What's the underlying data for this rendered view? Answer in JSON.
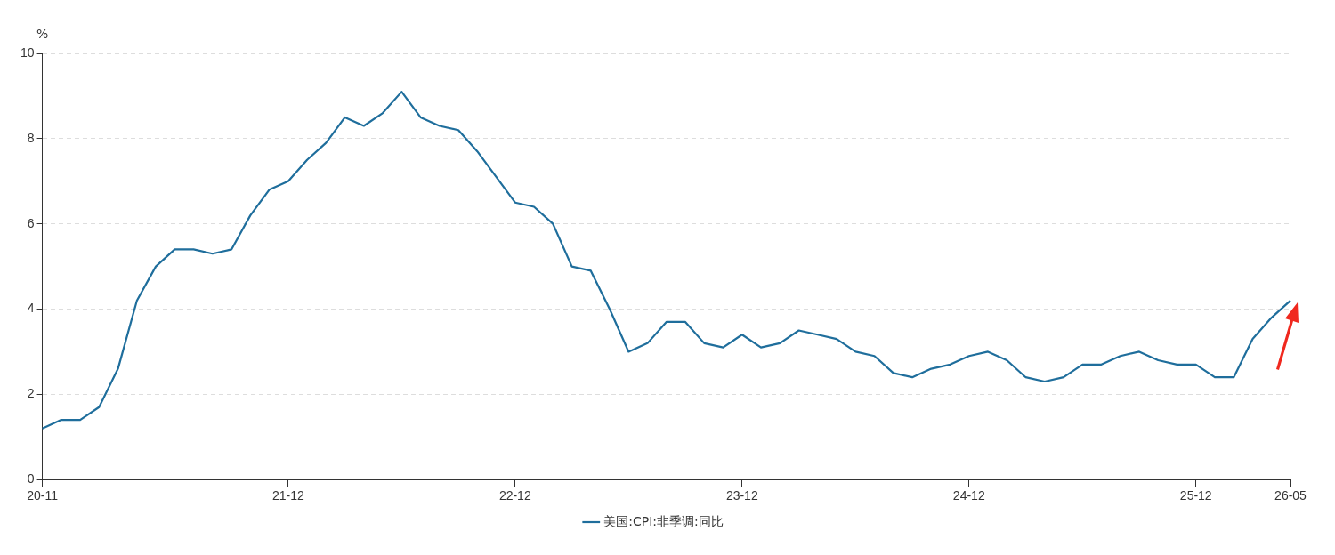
{
  "chart_data": {
    "type": "line",
    "ylabel": "%",
    "categories": [
      "20-11",
      null,
      null,
      null,
      null,
      null,
      null,
      null,
      null,
      null,
      null,
      null,
      null,
      "21-12",
      null,
      null,
      null,
      null,
      null,
      null,
      null,
      null,
      null,
      null,
      null,
      "22-12",
      null,
      null,
      null,
      null,
      null,
      null,
      null,
      null,
      null,
      null,
      null,
      "23-12",
      null,
      null,
      null,
      null,
      null,
      null,
      null,
      null,
      null,
      null,
      null,
      "24-12",
      null,
      null,
      null,
      null,
      null,
      null,
      null,
      null,
      null,
      null,
      null,
      "25-12",
      null,
      null,
      null,
      null,
      "26-05"
    ],
    "series": [
      {
        "name": "美国:CPI:非季调:同比",
        "color": "#1f6e9c",
        "values": [
          1.2,
          1.4,
          1.4,
          1.7,
          2.6,
          4.2,
          5.0,
          5.4,
          5.4,
          5.3,
          5.4,
          6.2,
          6.8,
          7.0,
          7.5,
          7.9,
          8.5,
          8.3,
          8.6,
          9.1,
          8.5,
          8.3,
          8.2,
          7.7,
          7.1,
          6.5,
          6.4,
          6.0,
          5.0,
          4.9,
          4.0,
          3.0,
          3.2,
          3.7,
          3.7,
          3.2,
          3.1,
          3.4,
          3.1,
          3.2,
          3.5,
          3.4,
          3.3,
          3.0,
          2.9,
          2.5,
          2.4,
          2.6,
          2.7,
          2.9,
          3.0,
          2.8,
          2.4,
          2.3,
          2.4,
          2.7,
          2.7,
          2.9,
          3.0,
          2.8,
          2.7,
          2.7,
          2.4,
          2.4,
          3.3,
          3.8,
          4.2
        ]
      }
    ],
    "ylim": [
      0,
      10
    ],
    "yticks": [
      0,
      2,
      4,
      6,
      8,
      10
    ],
    "grid": "y",
    "legend": "bottom",
    "marker": "none",
    "line_style": "solid"
  }
}
